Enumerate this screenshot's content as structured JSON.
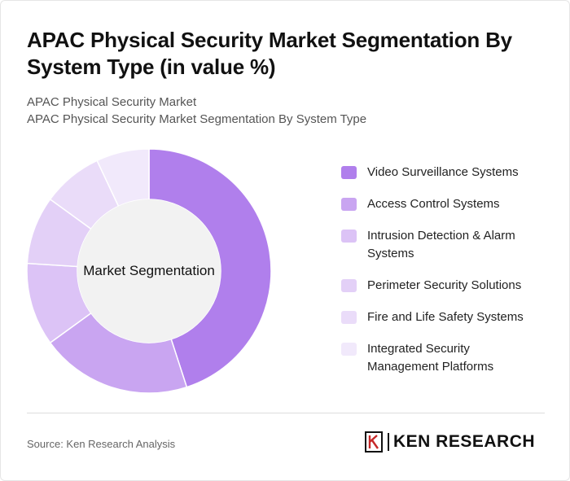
{
  "title": "APAC Physical Security Market Segmentation By System Type (in value %)",
  "subtitle_lines": [
    "APAC Physical Security Market",
    "APAC Physical Security Market Segmentation By System Type"
  ],
  "chart_data": {
    "type": "pie",
    "variant": "donut",
    "center_label": "Market Segmentation",
    "categories": [
      "Video Surveillance Systems",
      "Access Control Systems",
      "Intrusion Detection & Alarm Systems",
      "Perimeter Security Solutions",
      "Fire and Life Safety Systems",
      "Integrated Security Management Platforms"
    ],
    "values": [
      45,
      20,
      11,
      9,
      8,
      7
    ],
    "colors": [
      "#b07fec",
      "#c9a5f1",
      "#dcc3f6",
      "#e3d0f7",
      "#eadcf9",
      "#f1e9fb"
    ],
    "legend_position": "right"
  },
  "footer": {
    "source": "Source: Ken Research Analysis",
    "logo_text": "KEN RESEARCH"
  }
}
